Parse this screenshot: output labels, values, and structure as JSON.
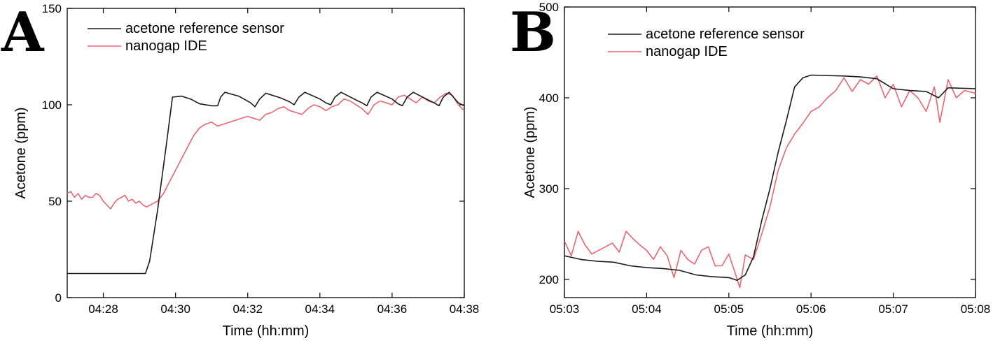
{
  "colors": {
    "reference": "#1a1a1a",
    "nanogap": "#ec6471",
    "axis": "#000000"
  },
  "chart_data": [
    {
      "panel_label": "A",
      "type": "line",
      "xlabel": "Time (hh:mm)",
      "ylabel": "Acetone (ppm)",
      "xlim": [
        "04:27",
        "04:38"
      ],
      "ylim": [
        0,
        150
      ],
      "xticks": [
        "04:28",
        "04:30",
        "04:32",
        "04:34",
        "04:36",
        "04:38"
      ],
      "yticks": [
        0,
        50,
        100,
        150
      ],
      "legend_position": "top-left",
      "grid": false,
      "series": [
        {
          "name": "acetone reference sensor",
          "color": "#1a1a1a",
          "points": [
            [
              "04:27:00",
              12.5
            ],
            [
              "04:29:10",
              12.5
            ],
            [
              "04:29:17",
              19
            ],
            [
              "04:29:30",
              45
            ],
            [
              "04:29:45",
              80
            ],
            [
              "04:29:55",
              104
            ],
            [
              "04:30:10",
              104.5
            ],
            [
              "04:30:25",
              103
            ],
            [
              "04:30:40",
              100.5
            ],
            [
              "04:31:00",
              99.5
            ],
            [
              "04:31:10",
              99.5
            ],
            [
              "04:31:15",
              104
            ],
            [
              "04:31:22",
              106.5
            ],
            [
              "04:31:45",
              104.5
            ],
            [
              "04:32:05",
              101
            ],
            [
              "04:32:12",
              99
            ],
            [
              "04:32:20",
              103
            ],
            [
              "04:32:30",
              106
            ],
            [
              "04:32:55",
              103.5
            ],
            [
              "04:33:10",
              101.5
            ],
            [
              "04:33:17",
              100
            ],
            [
              "04:33:25",
              104
            ],
            [
              "04:33:35",
              106.5
            ],
            [
              "04:34:00",
              103
            ],
            [
              "04:34:10",
              101
            ],
            [
              "04:34:18",
              100
            ],
            [
              "04:34:25",
              104
            ],
            [
              "04:34:35",
              106.5
            ],
            [
              "04:35:00",
              102.5
            ],
            [
              "04:35:10",
              101
            ],
            [
              "04:35:18",
              99.5
            ],
            [
              "04:35:25",
              104
            ],
            [
              "04:35:35",
              106.5
            ],
            [
              "04:36:00",
              103
            ],
            [
              "04:36:10",
              100.5
            ],
            [
              "04:36:17",
              99.5
            ],
            [
              "04:36:25",
              104
            ],
            [
              "04:36:35",
              106.5
            ],
            [
              "04:37:00",
              102.5
            ],
            [
              "04:37:10",
              101
            ],
            [
              "04:37:18",
              99.5
            ],
            [
              "04:37:25",
              104
            ],
            [
              "04:37:35",
              106.5
            ],
            [
              "04:37:50",
              101
            ],
            [
              "04:38:00",
              99.5
            ],
            [
              "04:38:02",
              104
            ]
          ]
        },
        {
          "name": "nanogap IDE",
          "color": "#ec6471",
          "points": [
            [
              "04:27:00",
              54
            ],
            [
              "04:27:06",
              55
            ],
            [
              "04:27:12",
              52
            ],
            [
              "04:27:18",
              54
            ],
            [
              "04:27:24",
              51
            ],
            [
              "04:27:30",
              53
            ],
            [
              "04:27:36",
              52
            ],
            [
              "04:27:42",
              52
            ],
            [
              "04:27:48",
              54
            ],
            [
              "04:27:54",
              53
            ],
            [
              "04:28:00",
              50
            ],
            [
              "04:28:06",
              48
            ],
            [
              "04:28:12",
              46
            ],
            [
              "04:28:18",
              49
            ],
            [
              "04:28:24",
              51
            ],
            [
              "04:28:30",
              52
            ],
            [
              "04:28:36",
              53
            ],
            [
              "04:28:42",
              50
            ],
            [
              "04:28:48",
              51
            ],
            [
              "04:28:54",
              49
            ],
            [
              "04:29:00",
              50
            ],
            [
              "04:29:06",
              48
            ],
            [
              "04:29:12",
              47
            ],
            [
              "04:29:18",
              48
            ],
            [
              "04:29:24",
              49
            ],
            [
              "04:29:30",
              50
            ],
            [
              "04:29:40",
              54
            ],
            [
              "04:29:50",
              60
            ],
            [
              "04:30:00",
              66
            ],
            [
              "04:30:10",
              72
            ],
            [
              "04:30:20",
              78
            ],
            [
              "04:30:30",
              84
            ],
            [
              "04:30:40",
              88
            ],
            [
              "04:30:50",
              90
            ],
            [
              "04:31:00",
              91
            ],
            [
              "04:31:10",
              89
            ],
            [
              "04:31:20",
              90
            ],
            [
              "04:31:30",
              91
            ],
            [
              "04:31:40",
              92
            ],
            [
              "04:31:50",
              93
            ],
            [
              "04:32:00",
              94
            ],
            [
              "04:32:10",
              93
            ],
            [
              "04:32:20",
              92
            ],
            [
              "04:32:30",
              95
            ],
            [
              "04:32:40",
              96
            ],
            [
              "04:32:50",
              98
            ],
            [
              "04:33:00",
              99
            ],
            [
              "04:33:10",
              97
            ],
            [
              "04:33:20",
              96
            ],
            [
              "04:33:30",
              95
            ],
            [
              "04:33:40",
              98
            ],
            [
              "04:33:50",
              100
            ],
            [
              "04:34:00",
              99
            ],
            [
              "04:34:10",
              97
            ],
            [
              "04:34:20",
              99
            ],
            [
              "04:34:30",
              100
            ],
            [
              "04:34:40",
              103
            ],
            [
              "04:34:50",
              102
            ],
            [
              "04:35:00",
              100
            ],
            [
              "04:35:10",
              98
            ],
            [
              "04:35:20",
              95
            ],
            [
              "04:35:30",
              100
            ],
            [
              "04:35:40",
              102
            ],
            [
              "04:35:50",
              101
            ],
            [
              "04:36:00",
              100
            ],
            [
              "04:36:10",
              104
            ],
            [
              "04:36:20",
              105
            ],
            [
              "04:36:30",
              103
            ],
            [
              "04:36:40",
              101
            ],
            [
              "04:36:50",
              104
            ],
            [
              "04:37:00",
              102
            ],
            [
              "04:37:10",
              101
            ],
            [
              "04:37:20",
              104
            ],
            [
              "04:37:30",
              106
            ],
            [
              "04:37:40",
              105
            ],
            [
              "04:37:50",
              100
            ],
            [
              "04:38:00",
              97
            ]
          ]
        }
      ]
    },
    {
      "panel_label": "B",
      "type": "line",
      "xlabel": "Time (hh:mm)",
      "ylabel": "Acetone (ppm)",
      "xlim": [
        "05:03",
        "05:08"
      ],
      "ylim": [
        180,
        500
      ],
      "xticks": [
        "05:03",
        "05:04",
        "05:05",
        "05:06",
        "05:07",
        "05:08"
      ],
      "yticks": [
        200,
        300,
        400,
        500
      ],
      "legend_position": "top-left",
      "grid": false,
      "series": [
        {
          "name": "acetone reference sensor",
          "color": "#1a1a1a",
          "points": [
            [
              "05:03:00",
              226
            ],
            [
              "05:03:12",
              222
            ],
            [
              "05:03:24",
              220
            ],
            [
              "05:03:36",
              219
            ],
            [
              "05:03:48",
              215
            ],
            [
              "05:04:00",
              213
            ],
            [
              "05:04:12",
              212
            ],
            [
              "05:04:24",
              210
            ],
            [
              "05:04:36",
              205
            ],
            [
              "05:04:48",
              203
            ],
            [
              "05:05:00",
              202
            ],
            [
              "05:05:06",
              199
            ],
            [
              "05:05:12",
              205
            ],
            [
              "05:05:18",
              225
            ],
            [
              "05:05:24",
              265
            ],
            [
              "05:05:30",
              300
            ],
            [
              "05:05:36",
              340
            ],
            [
              "05:05:42",
              375
            ],
            [
              "05:05:48",
              412
            ],
            [
              "05:05:54",
              422
            ],
            [
              "05:06:00",
              425
            ],
            [
              "05:06:24",
              424
            ],
            [
              "05:06:36",
              423
            ],
            [
              "05:06:48",
              421
            ],
            [
              "05:07:00",
              410
            ],
            [
              "05:07:12",
              408
            ],
            [
              "05:07:24",
              407
            ],
            [
              "05:07:33",
              400
            ],
            [
              "05:07:40",
              411
            ],
            [
              "05:08:00",
              410
            ]
          ]
        },
        {
          "name": "nanogap IDE",
          "color": "#ec6471",
          "points": [
            [
              "05:03:00",
              242
            ],
            [
              "05:03:05",
              226
            ],
            [
              "05:03:10",
              253
            ],
            [
              "05:03:15",
              238
            ],
            [
              "05:03:20",
              228
            ],
            [
              "05:03:25",
              232
            ],
            [
              "05:03:30",
              236
            ],
            [
              "05:03:35",
              240
            ],
            [
              "05:03:40",
              230
            ],
            [
              "05:03:45",
              253
            ],
            [
              "05:03:50",
              245
            ],
            [
              "05:03:55",
              238
            ],
            [
              "05:04:00",
              232
            ],
            [
              "05:04:05",
              222
            ],
            [
              "05:04:10",
              236
            ],
            [
              "05:04:15",
              226
            ],
            [
              "05:04:20",
              202
            ],
            [
              "05:04:25",
              232
            ],
            [
              "05:04:30",
              222
            ],
            [
              "05:04:35",
              217
            ],
            [
              "05:04:40",
              232
            ],
            [
              "05:04:45",
              236
            ],
            [
              "05:04:50",
              215
            ],
            [
              "05:04:55",
              215
            ],
            [
              "05:05:00",
              228
            ],
            [
              "05:05:05",
              205
            ],
            [
              "05:05:08",
              191
            ],
            [
              "05:05:12",
              227
            ],
            [
              "05:05:18",
              222
            ],
            [
              "05:05:24",
              250
            ],
            [
              "05:05:30",
              280
            ],
            [
              "05:05:36",
              320
            ],
            [
              "05:05:42",
              345
            ],
            [
              "05:05:48",
              360
            ],
            [
              "05:05:54",
              372
            ],
            [
              "05:06:00",
              385
            ],
            [
              "05:06:06",
              390
            ],
            [
              "05:06:12",
              400
            ],
            [
              "05:06:18",
              408
            ],
            [
              "05:06:24",
              422
            ],
            [
              "05:06:30",
              407
            ],
            [
              "05:06:36",
              420
            ],
            [
              "05:06:42",
              415
            ],
            [
              "05:06:48",
              424
            ],
            [
              "05:06:54",
              400
            ],
            [
              "05:07:00",
              415
            ],
            [
              "05:07:06",
              390
            ],
            [
              "05:07:12",
              408
            ],
            [
              "05:07:18",
              400
            ],
            [
              "05:07:24",
              385
            ],
            [
              "05:07:30",
              412
            ],
            [
              "05:07:34",
              373
            ],
            [
              "05:07:40",
              420
            ],
            [
              "05:07:46",
              400
            ],
            [
              "05:07:52",
              408
            ],
            [
              "05:08:00",
              405
            ]
          ]
        }
      ]
    }
  ]
}
